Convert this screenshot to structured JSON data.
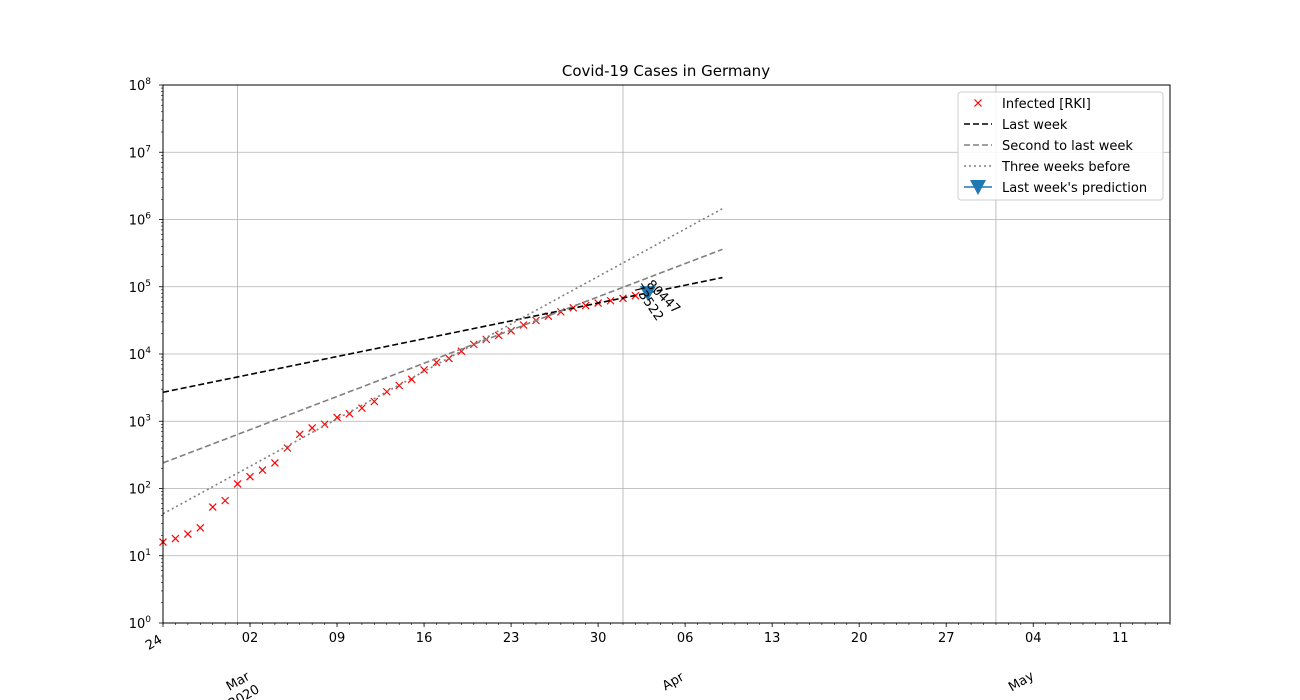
{
  "chart_data": {
    "type": "line",
    "title": "Covid-19 Cases in Germany",
    "xlabel": "",
    "ylabel": "",
    "yscale": "log",
    "xlim": [
      "2020-02-24",
      "2020-05-15"
    ],
    "ylim": [
      1,
      100000000
    ],
    "grid": true,
    "legend_position": "top-right",
    "y_ticks": [
      {
        "base": "10",
        "exp": "0"
      },
      {
        "base": "10",
        "exp": "1"
      },
      {
        "base": "10",
        "exp": "2"
      },
      {
        "base": "10",
        "exp": "3"
      },
      {
        "base": "10",
        "exp": "4"
      },
      {
        "base": "10",
        "exp": "5"
      },
      {
        "base": "10",
        "exp": "6"
      },
      {
        "base": "10",
        "exp": "7"
      },
      {
        "base": "10",
        "exp": "8"
      }
    ],
    "x_major_ticks": [
      {
        "date": "2020-02-24",
        "label": "24",
        "month_label": "",
        "year_label": ""
      },
      {
        "date": "2020-03-02",
        "label": "02",
        "month_label": "Mar",
        "year_label": "2020"
      },
      {
        "date": "2020-03-09",
        "label": "09",
        "month_label": "",
        "year_label": ""
      },
      {
        "date": "2020-03-16",
        "label": "16",
        "month_label": "",
        "year_label": ""
      },
      {
        "date": "2020-03-23",
        "label": "23",
        "month_label": "",
        "year_label": ""
      },
      {
        "date": "2020-03-30",
        "label": "30",
        "month_label": "",
        "year_label": ""
      },
      {
        "date": "2020-04-06",
        "label": "06",
        "month_label": "Apr",
        "year_label": ""
      },
      {
        "date": "2020-04-13",
        "label": "13",
        "month_label": "",
        "year_label": ""
      },
      {
        "date": "2020-04-20",
        "label": "20",
        "month_label": "",
        "year_label": ""
      },
      {
        "date": "2020-04-27",
        "label": "27",
        "month_label": "",
        "year_label": ""
      },
      {
        "date": "2020-05-04",
        "label": "04",
        "month_label": "May",
        "year_label": ""
      },
      {
        "date": "2020-05-11",
        "label": "11",
        "month_label": "",
        "year_label": ""
      }
    ],
    "x_gridlines": [
      "2020-03-01",
      "2020-04-01",
      "2020-05-01"
    ],
    "series": [
      {
        "name": "Infected [RKI]",
        "kind": "markers",
        "marker": "x",
        "color": "#ff0000",
        "points": [
          {
            "x": "2020-02-24",
            "y": 16
          },
          {
            "x": "2020-02-25",
            "y": 18
          },
          {
            "x": "2020-02-26",
            "y": 21
          },
          {
            "x": "2020-02-27",
            "y": 26
          },
          {
            "x": "2020-02-28",
            "y": 53
          },
          {
            "x": "2020-02-29",
            "y": 66
          },
          {
            "x": "2020-03-01",
            "y": 117
          },
          {
            "x": "2020-03-02",
            "y": 150
          },
          {
            "x": "2020-03-03",
            "y": 188
          },
          {
            "x": "2020-03-04",
            "y": 240
          },
          {
            "x": "2020-03-05",
            "y": 400
          },
          {
            "x": "2020-03-06",
            "y": 639
          },
          {
            "x": "2020-03-07",
            "y": 795
          },
          {
            "x": "2020-03-08",
            "y": 902
          },
          {
            "x": "2020-03-09",
            "y": 1139
          },
          {
            "x": "2020-03-10",
            "y": 1296
          },
          {
            "x": "2020-03-11",
            "y": 1567
          },
          {
            "x": "2020-03-12",
            "y": 1966
          },
          {
            "x": "2020-03-13",
            "y": 2745
          },
          {
            "x": "2020-03-14",
            "y": 3400
          },
          {
            "x": "2020-03-15",
            "y": 4200
          },
          {
            "x": "2020-03-16",
            "y": 5800
          },
          {
            "x": "2020-03-17",
            "y": 7500
          },
          {
            "x": "2020-03-18",
            "y": 8600
          },
          {
            "x": "2020-03-19",
            "y": 11000
          },
          {
            "x": "2020-03-20",
            "y": 13900
          },
          {
            "x": "2020-03-21",
            "y": 16500
          },
          {
            "x": "2020-03-22",
            "y": 18900
          },
          {
            "x": "2020-03-23",
            "y": 22100
          },
          {
            "x": "2020-03-24",
            "y": 27000
          },
          {
            "x": "2020-03-25",
            "y": 31500
          },
          {
            "x": "2020-03-26",
            "y": 36500
          },
          {
            "x": "2020-03-27",
            "y": 42300
          },
          {
            "x": "2020-03-28",
            "y": 48600
          },
          {
            "x": "2020-03-29",
            "y": 52500
          },
          {
            "x": "2020-03-30",
            "y": 57300
          },
          {
            "x": "2020-03-31",
            "y": 61900
          },
          {
            "x": "2020-04-01",
            "y": 67400
          },
          {
            "x": "2020-04-02",
            "y": 73522
          }
        ]
      },
      {
        "name": "Last week",
        "kind": "line",
        "dash": "dashed",
        "color": "#000000",
        "points": [
          {
            "x": "2020-02-24",
            "y": 2700
          },
          {
            "x": "2020-04-09",
            "y": 137000
          }
        ]
      },
      {
        "name": "Second to last week",
        "kind": "line",
        "dash": "dashed",
        "color": "#808080",
        "points": [
          {
            "x": "2020-02-24",
            "y": 240
          },
          {
            "x": "2020-04-09",
            "y": 360000
          }
        ]
      },
      {
        "name": "Three weeks before",
        "kind": "line",
        "dash": "dotted",
        "color": "#808080",
        "points": [
          {
            "x": "2020-02-24",
            "y": 42
          },
          {
            "x": "2020-04-09",
            "y": 1450000
          }
        ]
      },
      {
        "name": "Last week's prediction",
        "kind": "marker",
        "marker": "triangle-down",
        "color": "#1f77b4",
        "points": [
          {
            "x": "2020-04-03",
            "y": 80447
          }
        ]
      }
    ],
    "annotations": [
      {
        "text": "73522",
        "x": "2020-04-02",
        "y": 73522,
        "rotation": -55
      },
      {
        "text": "80447",
        "x": "2020-04-03",
        "y": 80447,
        "rotation": -45
      }
    ]
  }
}
